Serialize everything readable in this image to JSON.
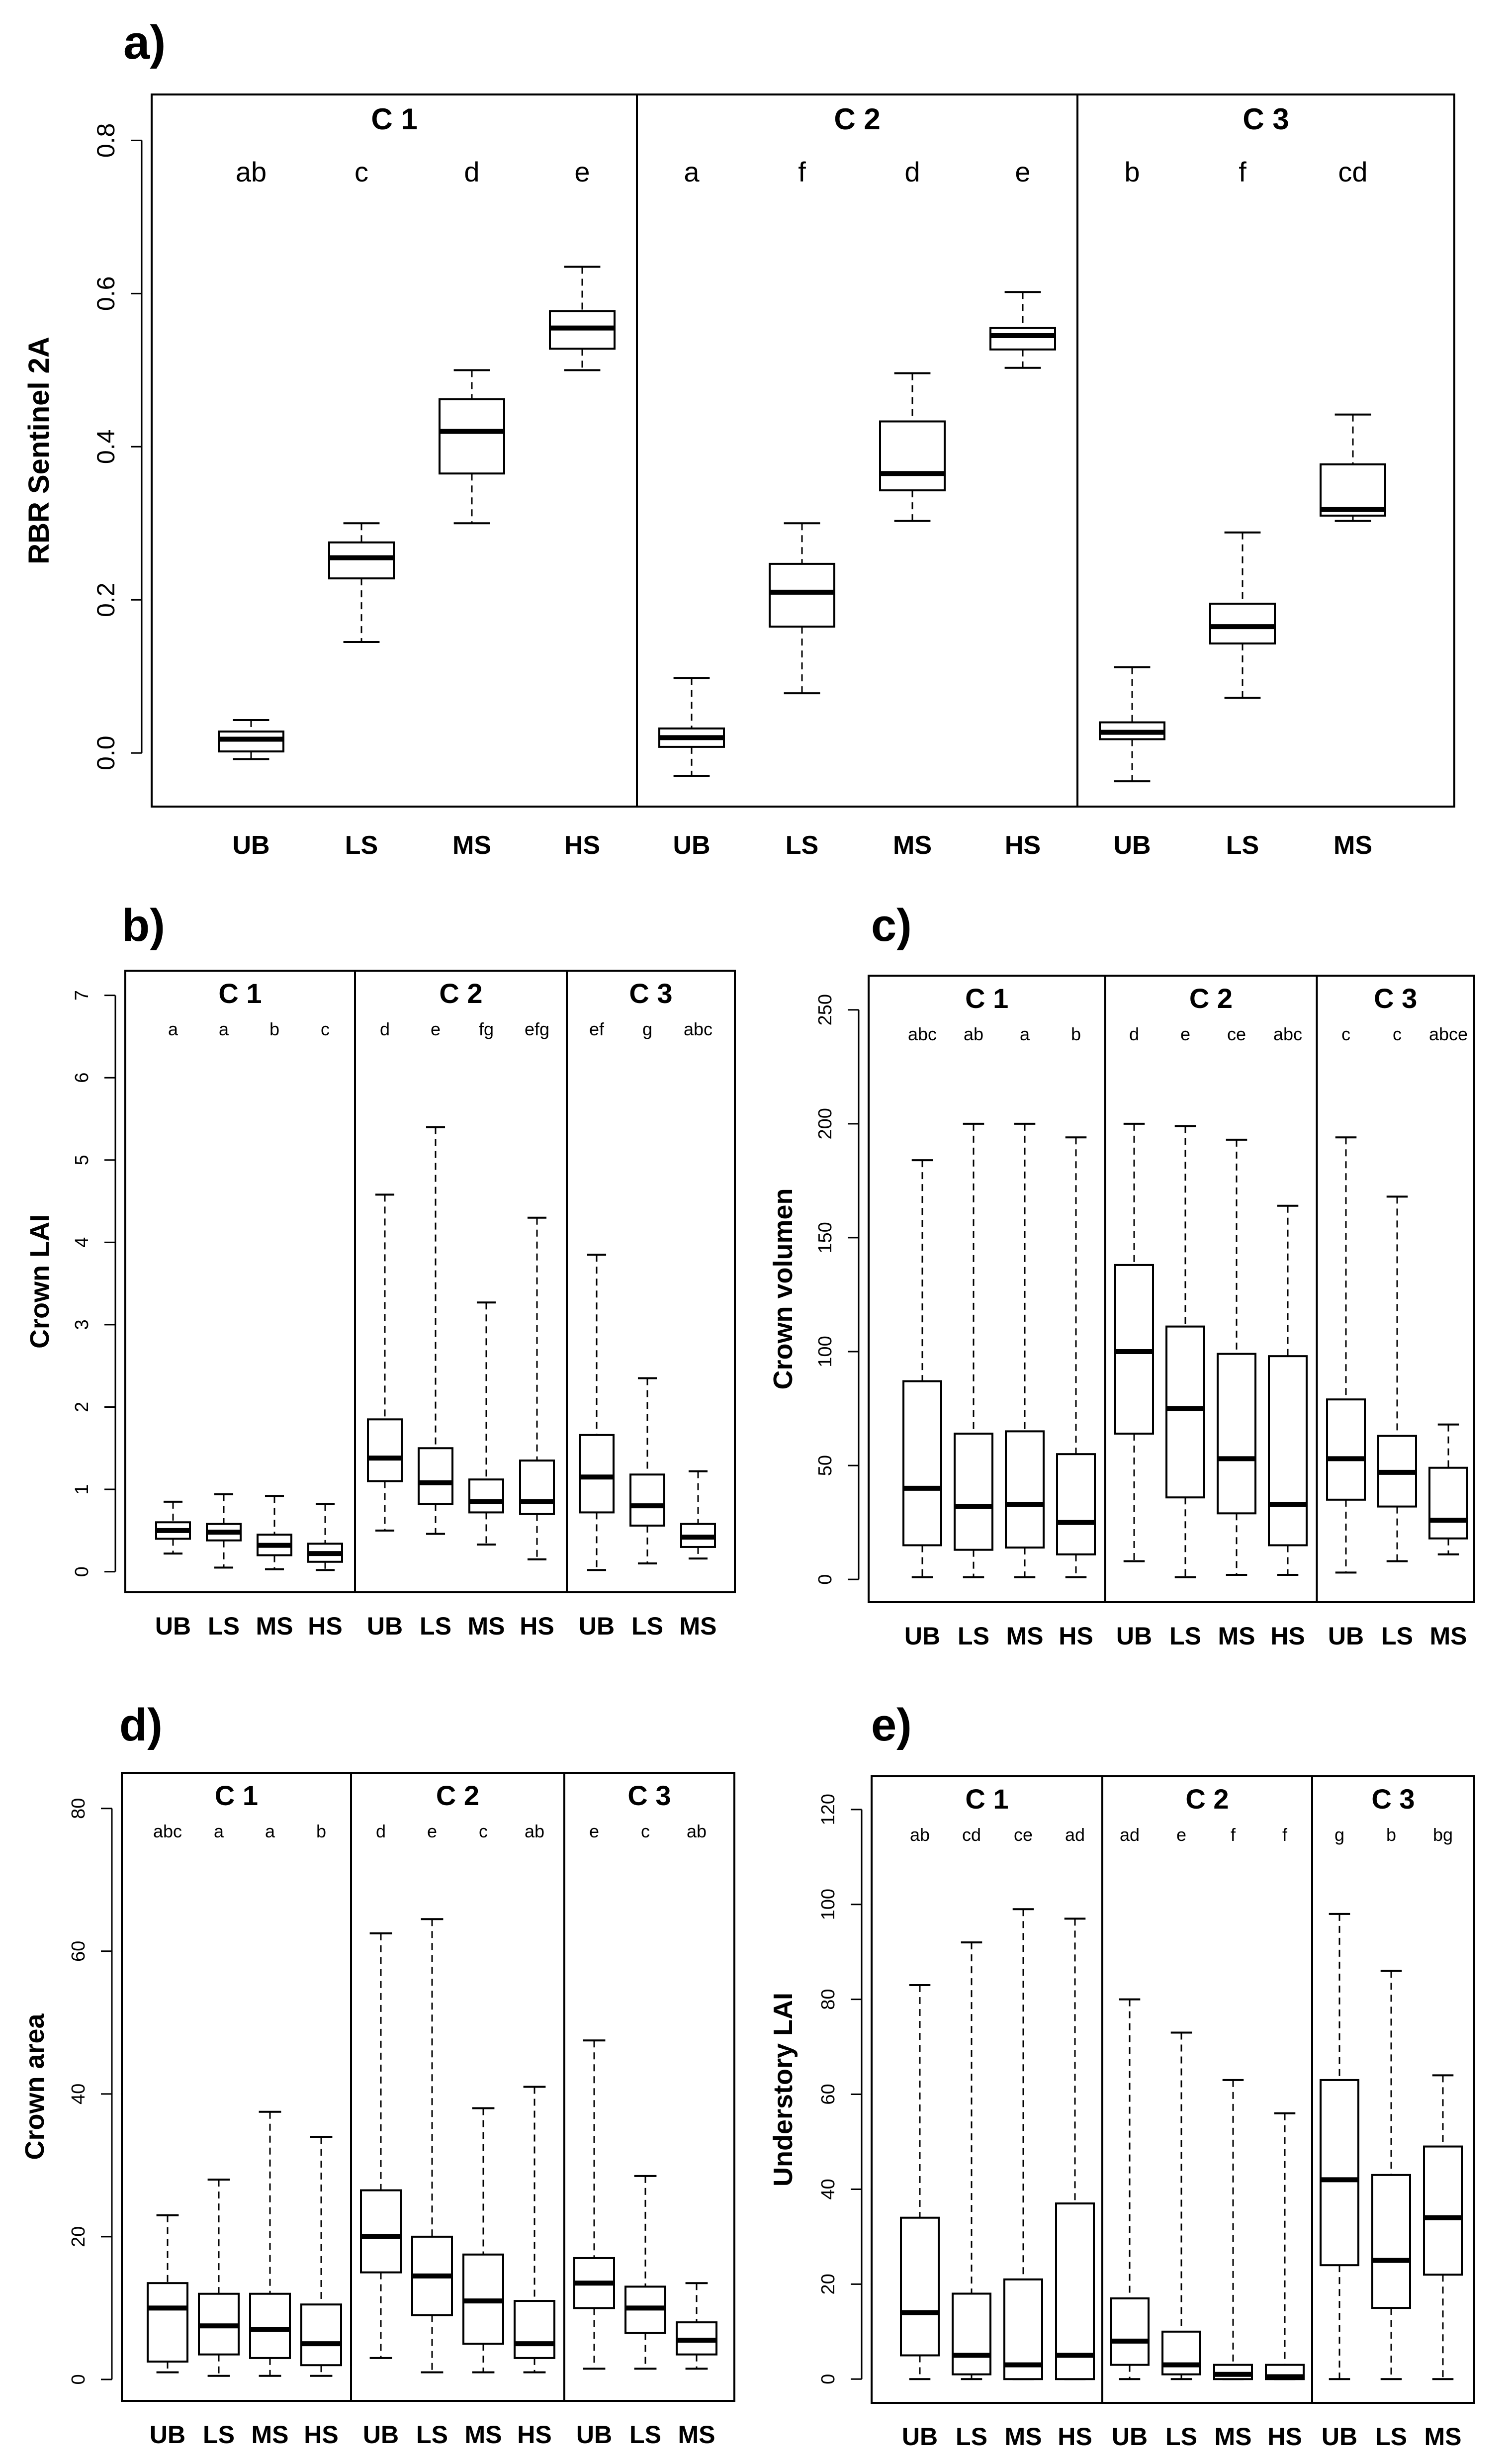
{
  "chart_data": [
    {
      "panel_label": "a)",
      "type": "boxplot",
      "ylabel": "RBR Sentinel 2A",
      "ylim": [
        -0.07,
        0.86
      ],
      "yticks": [
        "0.0",
        "0.2",
        "0.4",
        "0.6",
        "0.8"
      ],
      "ytick_values": [
        0,
        0.2,
        0.4,
        0.6,
        0.8
      ],
      "groups": [
        {
          "name": "C 1",
          "boxes": [
            {
              "label": "UB",
              "letters": "ab",
              "whisker_low": -0.008,
              "q1": 0.002,
              "median": 0.018,
              "q3": 0.028,
              "whisker_high": 0.043
            },
            {
              "label": "LS",
              "letters": "c",
              "whisker_low": 0.145,
              "q1": 0.228,
              "median": 0.255,
              "q3": 0.275,
              "whisker_high": 0.3
            },
            {
              "label": "MS",
              "letters": "d",
              "whisker_low": 0.3,
              "q1": 0.365,
              "median": 0.42,
              "q3": 0.462,
              "whisker_high": 0.5
            },
            {
              "label": "HS",
              "letters": "e",
              "whisker_low": 0.5,
              "q1": 0.528,
              "median": 0.555,
              "q3": 0.577,
              "whisker_high": 0.635
            }
          ]
        },
        {
          "name": "C 2",
          "boxes": [
            {
              "label": "UB",
              "letters": "a",
              "whisker_low": -0.03,
              "q1": 0.008,
              "median": 0.02,
              "q3": 0.032,
              "whisker_high": 0.098
            },
            {
              "label": "LS",
              "letters": "f",
              "whisker_low": 0.078,
              "q1": 0.165,
              "median": 0.21,
              "q3": 0.247,
              "whisker_high": 0.3
            },
            {
              "label": "MS",
              "letters": "d",
              "whisker_low": 0.303,
              "q1": 0.343,
              "median": 0.365,
              "q3": 0.433,
              "whisker_high": 0.496
            },
            {
              "label": "HS",
              "letters": "e",
              "whisker_low": 0.503,
              "q1": 0.527,
              "median": 0.545,
              "q3": 0.555,
              "whisker_high": 0.602
            }
          ]
        },
        {
          "name": "C 3",
          "boxes": [
            {
              "label": "UB",
              "letters": "b",
              "whisker_low": -0.037,
              "q1": 0.018,
              "median": 0.027,
              "q3": 0.04,
              "whisker_high": 0.112
            },
            {
              "label": "LS",
              "letters": "f",
              "whisker_low": 0.072,
              "q1": 0.143,
              "median": 0.165,
              "q3": 0.195,
              "whisker_high": 0.288
            },
            {
              "label": "MS",
              "letters": "cd",
              "whisker_low": 0.303,
              "q1": 0.31,
              "median": 0.318,
              "q3": 0.377,
              "whisker_high": 0.442
            }
          ]
        }
      ]
    },
    {
      "panel_label": "b)",
      "type": "boxplot",
      "ylabel": "Crown LAI",
      "ylim": [
        -0.25,
        7.3
      ],
      "yticks": [
        "0",
        "1",
        "2",
        "3",
        "4",
        "5",
        "6",
        "7"
      ],
      "ytick_values": [
        0,
        1,
        2,
        3,
        4,
        5,
        6,
        7
      ],
      "groups": [
        {
          "name": "C 1",
          "boxes": [
            {
              "label": "UB",
              "letters": "a",
              "whisker_low": 0.22,
              "q1": 0.4,
              "median": 0.5,
              "q3": 0.6,
              "whisker_high": 0.85
            },
            {
              "label": "LS",
              "letters": "a",
              "whisker_low": 0.05,
              "q1": 0.38,
              "median": 0.48,
              "q3": 0.58,
              "whisker_high": 0.94
            },
            {
              "label": "MS",
              "letters": "b",
              "whisker_low": 0.03,
              "q1": 0.2,
              "median": 0.32,
              "q3": 0.45,
              "whisker_high": 0.92
            },
            {
              "label": "HS",
              "letters": "c",
              "whisker_low": 0.02,
              "q1": 0.12,
              "median": 0.22,
              "q3": 0.34,
              "whisker_high": 0.82
            }
          ]
        },
        {
          "name": "C 2",
          "boxes": [
            {
              "label": "UB",
              "letters": "d",
              "whisker_low": 0.5,
              "q1": 1.1,
              "median": 1.38,
              "q3": 1.85,
              "whisker_high": 4.58
            },
            {
              "label": "LS",
              "letters": "e",
              "whisker_low": 0.46,
              "q1": 0.82,
              "median": 1.08,
              "q3": 1.5,
              "whisker_high": 5.4
            },
            {
              "label": "MS",
              "letters": "fg",
              "whisker_low": 0.33,
              "q1": 0.72,
              "median": 0.85,
              "q3": 1.12,
              "whisker_high": 3.27
            },
            {
              "label": "HS",
              "letters": "efg",
              "whisker_low": 0.15,
              "q1": 0.7,
              "median": 0.85,
              "q3": 1.35,
              "whisker_high": 4.3
            }
          ]
        },
        {
          "name": "C 3",
          "boxes": [
            {
              "label": "UB",
              "letters": "ef",
              "whisker_low": 0.02,
              "q1": 0.72,
              "median": 1.15,
              "q3": 1.66,
              "whisker_high": 3.85
            },
            {
              "label": "LS",
              "letters": "g",
              "whisker_low": 0.1,
              "q1": 0.56,
              "median": 0.8,
              "q3": 1.18,
              "whisker_high": 2.35
            },
            {
              "label": "MS",
              "letters": "abc",
              "whisker_low": 0.16,
              "q1": 0.3,
              "median": 0.42,
              "q3": 0.58,
              "whisker_high": 1.22
            }
          ]
        }
      ]
    },
    {
      "panel_label": "c)",
      "type": "boxplot",
      "ylabel": "Crown volumen",
      "ylim": [
        -10,
        265
      ],
      "yticks": [
        "0",
        "50",
        "100",
        "150",
        "200",
        "250"
      ],
      "ytick_values": [
        0,
        50,
        100,
        150,
        200,
        250
      ],
      "groups": [
        {
          "name": "C 1",
          "boxes": [
            {
              "label": "UB",
              "letters": "abc",
              "whisker_low": 1,
              "q1": 15,
              "median": 40,
              "q3": 87,
              "whisker_high": 184
            },
            {
              "label": "LS",
              "letters": "ab",
              "whisker_low": 1,
              "q1": 13,
              "median": 32,
              "q3": 64,
              "whisker_high": 200
            },
            {
              "label": "MS",
              "letters": "a",
              "whisker_low": 1,
              "q1": 14,
              "median": 33,
              "q3": 65,
              "whisker_high": 200
            },
            {
              "label": "HS",
              "letters": "b",
              "whisker_low": 1,
              "q1": 11,
              "median": 25,
              "q3": 55,
              "whisker_high": 194
            }
          ]
        },
        {
          "name": "C 2",
          "boxes": [
            {
              "label": "UB",
              "letters": "d",
              "whisker_low": 8,
              "q1": 64,
              "median": 100,
              "q3": 138,
              "whisker_high": 200
            },
            {
              "label": "LS",
              "letters": "e",
              "whisker_low": 1,
              "q1": 36,
              "median": 75,
              "q3": 111,
              "whisker_high": 199
            },
            {
              "label": "MS",
              "letters": "ce",
              "whisker_low": 2,
              "q1": 29,
              "median": 53,
              "q3": 99,
              "whisker_high": 193
            },
            {
              "label": "HS",
              "letters": "abc",
              "whisker_low": 2,
              "q1": 15,
              "median": 33,
              "q3": 98,
              "whisker_high": 164
            }
          ]
        },
        {
          "name": "C 3",
          "boxes": [
            {
              "label": "UB",
              "letters": "c",
              "whisker_low": 3,
              "q1": 35,
              "median": 53,
              "q3": 79,
              "whisker_high": 194
            },
            {
              "label": "LS",
              "letters": "c",
              "whisker_low": 8,
              "q1": 32,
              "median": 47,
              "q3": 63,
              "whisker_high": 168
            },
            {
              "label": "MS",
              "letters": "abce",
              "whisker_low": 11,
              "q1": 18,
              "median": 26,
              "q3": 49,
              "whisker_high": 68
            }
          ]
        }
      ]
    },
    {
      "panel_label": "d)",
      "type": "boxplot",
      "ylabel": "Crown area",
      "ylim": [
        -3,
        85
      ],
      "yticks": [
        "0",
        "20",
        "40",
        "60",
        "80"
      ],
      "ytick_values": [
        0,
        20,
        40,
        60,
        80
      ],
      "groups": [
        {
          "name": "C 1",
          "boxes": [
            {
              "label": "UB",
              "letters": "abc",
              "whisker_low": 1,
              "q1": 2.5,
              "median": 10,
              "q3": 13.5,
              "whisker_high": 23
            },
            {
              "label": "LS",
              "letters": "a",
              "whisker_low": 0.5,
              "q1": 3.5,
              "median": 7.5,
              "q3": 12,
              "whisker_high": 28
            },
            {
              "label": "MS",
              "letters": "a",
              "whisker_low": 0.5,
              "q1": 3,
              "median": 7,
              "q3": 12,
              "whisker_high": 37.5
            },
            {
              "label": "HS",
              "letters": "b",
              "whisker_low": 0.5,
              "q1": 2,
              "median": 5,
              "q3": 10.5,
              "whisker_high": 34
            }
          ]
        },
        {
          "name": "C 2",
          "boxes": [
            {
              "label": "UB",
              "letters": "d",
              "whisker_low": 3,
              "q1": 15,
              "median": 20,
              "q3": 26.5,
              "whisker_high": 62.5
            },
            {
              "label": "LS",
              "letters": "e",
              "whisker_low": 1,
              "q1": 9,
              "median": 14.5,
              "q3": 20,
              "whisker_high": 64.5
            },
            {
              "label": "MS",
              "letters": "c",
              "whisker_low": 1,
              "q1": 5,
              "median": 11,
              "q3": 17.5,
              "whisker_high": 38
            },
            {
              "label": "HS",
              "letters": "ab",
              "whisker_low": 1,
              "q1": 3,
              "median": 5,
              "q3": 11,
              "whisker_high": 41
            }
          ]
        },
        {
          "name": "C 3",
          "boxes": [
            {
              "label": "UB",
              "letters": "e",
              "whisker_low": 1.5,
              "q1": 10,
              "median": 13.5,
              "q3": 17,
              "whisker_high": 47.5
            },
            {
              "label": "LS",
              "letters": "c",
              "whisker_low": 1.5,
              "q1": 6.5,
              "median": 10,
              "q3": 13,
              "whisker_high": 28.5
            },
            {
              "label": "MS",
              "letters": "ab",
              "whisker_low": 1.5,
              "q1": 3.5,
              "median": 5.5,
              "q3": 8,
              "whisker_high": 13.5
            }
          ]
        }
      ]
    },
    {
      "panel_label": "e)",
      "type": "boxplot",
      "ylabel": "Understory LAI",
      "ylim": [
        -5,
        127
      ],
      "yticks": [
        "0",
        "20",
        "40",
        "60",
        "80",
        "100",
        "120"
      ],
      "ytick_values": [
        0,
        20,
        40,
        60,
        80,
        100,
        120
      ],
      "groups": [
        {
          "name": "C 1",
          "boxes": [
            {
              "label": "UB",
              "letters": "ab",
              "whisker_low": 0,
              "q1": 5,
              "median": 14,
              "q3": 34,
              "whisker_high": 83
            },
            {
              "label": "LS",
              "letters": "cd",
              "whisker_low": 0,
              "q1": 1,
              "median": 5,
              "q3": 18,
              "whisker_high": 92
            },
            {
              "label": "MS",
              "letters": "ce",
              "whisker_low": 0,
              "q1": 0,
              "median": 3,
              "q3": 21,
              "whisker_high": 99
            },
            {
              "label": "HS",
              "letters": "ad",
              "whisker_low": 0,
              "q1": 0,
              "median": 5,
              "q3": 37,
              "whisker_high": 97
            }
          ]
        },
        {
          "name": "C 2",
          "boxes": [
            {
              "label": "UB",
              "letters": "ad",
              "whisker_low": 0,
              "q1": 3,
              "median": 8,
              "q3": 17,
              "whisker_high": 80
            },
            {
              "label": "LS",
              "letters": "e",
              "whisker_low": 0,
              "q1": 1,
              "median": 3,
              "q3": 10,
              "whisker_high": 73
            },
            {
              "label": "MS",
              "letters": "f",
              "whisker_low": 0,
              "q1": 0,
              "median": 1,
              "q3": 3,
              "whisker_high": 63
            },
            {
              "label": "HS",
              "letters": "f",
              "whisker_low": 0,
              "q1": 0,
              "median": 0.5,
              "q3": 3,
              "whisker_high": 56
            }
          ]
        },
        {
          "name": "C 3",
          "boxes": [
            {
              "label": "UB",
              "letters": "g",
              "whisker_low": 0,
              "q1": 24,
              "median": 42,
              "q3": 63,
              "whisker_high": 98
            },
            {
              "label": "LS",
              "letters": "b",
              "whisker_low": 0,
              "q1": 15,
              "median": 25,
              "q3": 43,
              "whisker_high": 86
            },
            {
              "label": "MS",
              "letters": "bg",
              "whisker_low": 0,
              "q1": 22,
              "median": 34,
              "q3": 49,
              "whisker_high": 64
            }
          ]
        }
      ]
    }
  ]
}
